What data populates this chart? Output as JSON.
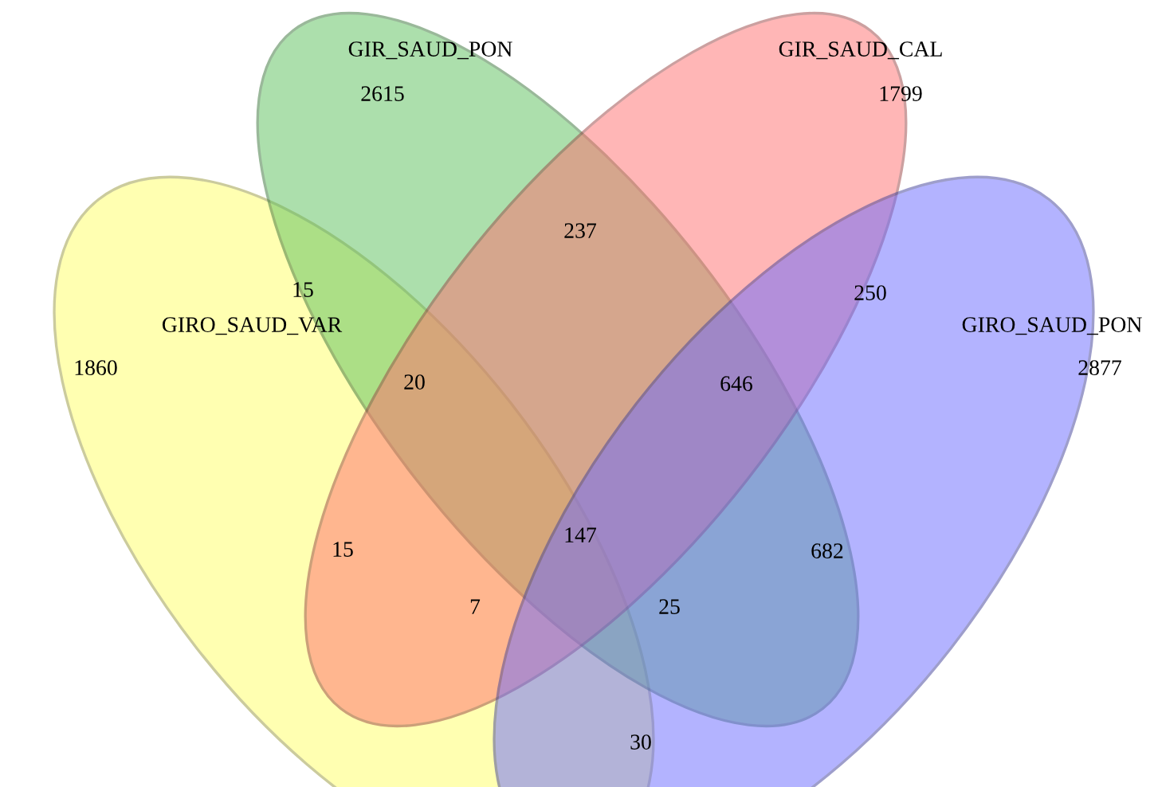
{
  "chart_data": {
    "type": "other",
    "categories": [
      "GIRO_SAUD_VAR",
      "GIR_SAUD_PON",
      "GIR_SAUD_CAL",
      "GIRO_SAUD_PON"
    ],
    "values": [
      1860,
      2615,
      1799,
      2877
    ],
    "colors": [
      "#ffff66",
      "#5cc05c",
      "#ff6f6f",
      "#6a6aff"
    ],
    "annotations": [
      "15",
      "237",
      "250",
      "20",
      "646",
      "15",
      "147",
      "682",
      "7",
      "25",
      "30"
    ],
    "data_labels": true
  }
}
